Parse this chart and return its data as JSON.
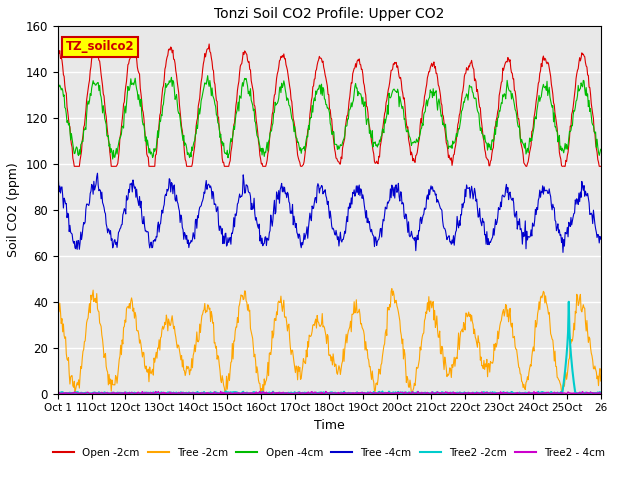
{
  "title": "Tonzi Soil CO2 Profile: Upper CO2",
  "ylabel": "Soil CO2 (ppm)",
  "xlabel": "Time",
  "ylim": [
    0,
    160
  ],
  "annotation_text": "TZ_soilco2",
  "annotation_bg": "#FFFF00",
  "annotation_border": "#CC0000",
  "x_tick_labels": [
    "Oct 1",
    "11Oct",
    "12Oct",
    "13Oct",
    "14Oct",
    "15Oct",
    "16Oct",
    "17Oct",
    "18Oct",
    "19Oct",
    "20Oct",
    "21Oct",
    "22Oct",
    "23Oct",
    "24Oct",
    "25Oct",
    "26"
  ],
  "series_colors": {
    "Open_2cm": "#DD0000",
    "Tree_2cm": "#FFA500",
    "Open_4cm": "#00BB00",
    "Tree_4cm": "#0000CC",
    "Tree2_2cm": "#00CCCC",
    "Tree2_4cm": "#CC00CC"
  },
  "legend_labels": [
    "Open -2cm",
    "Tree -2cm",
    "Open -4cm",
    "Tree -4cm",
    "Tree2 -2cm",
    "Tree2 - 4cm"
  ],
  "n_points": 750,
  "n_days": 25,
  "seed": 42
}
